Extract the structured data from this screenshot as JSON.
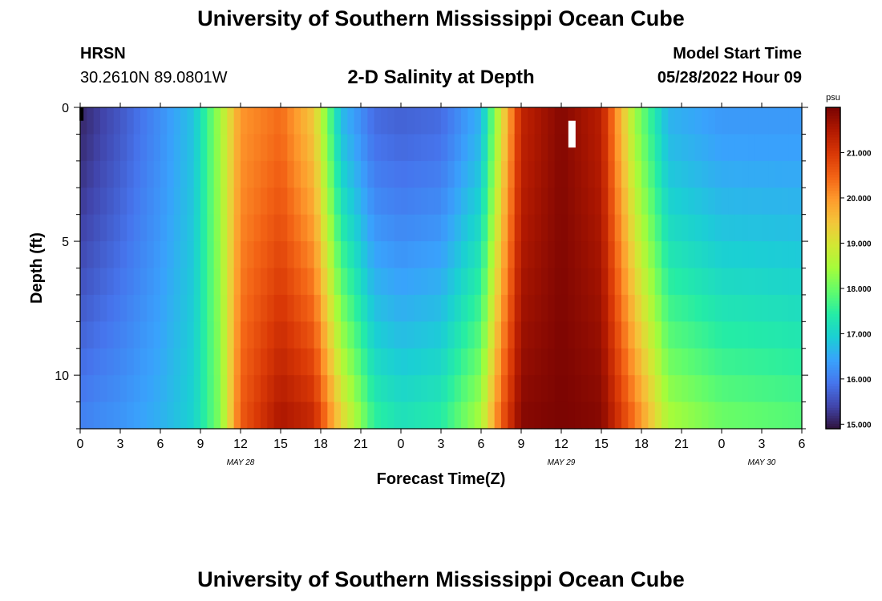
{
  "header": {
    "title": "University of Southern Mississippi Ocean Cube",
    "station": "HRSN",
    "coordinates": "30.2610N  89.0801W",
    "subtitle": "2-D Salinity at Depth",
    "model_start_label": "Model Start Time",
    "model_start_value": "05/28/2022 Hour 09"
  },
  "footer": {
    "title": "University of Southern Mississippi Ocean Cube"
  },
  "chart_data": {
    "type": "heatmap",
    "xlabel": "Forecast Time(Z)",
    "ylabel": "Depth (ft)",
    "x_tick_labels": [
      "0",
      "3",
      "6",
      "9",
      "12",
      "15",
      "18",
      "21",
      "0",
      "3",
      "6",
      "9",
      "12",
      "15",
      "18",
      "21",
      "0",
      "3",
      "6"
    ],
    "x_range_hours": [
      0,
      54
    ],
    "day_labels": [
      {
        "text": "MAY 28",
        "hour": 12
      },
      {
        "text": "MAY 29",
        "hour": 36
      },
      {
        "text": "MAY 30",
        "hour": 51
      }
    ],
    "y_tick_labels": [
      "0",
      "5",
      "10"
    ],
    "ylim_ft": [
      0,
      12
    ],
    "y_inverted": true,
    "depth_levels_ft": [
      0,
      1,
      2,
      3,
      4,
      5,
      6,
      7,
      8,
      9,
      10,
      11,
      12
    ],
    "colorbar": {
      "unit": "psu",
      "range": [
        14.9,
        22.0
      ],
      "tick_labels": [
        "15.000",
        "16.000",
        "17.000",
        "18.000",
        "19.000",
        "20.000",
        "21.000"
      ],
      "ticks": [
        15,
        16,
        17,
        18,
        19,
        20,
        21
      ],
      "colors": [
        "#30123b",
        "#4145ab",
        "#4675ed",
        "#39a2fc",
        "#1bcfd4",
        "#24eca6",
        "#61fc6c",
        "#a4fc3b",
        "#d1e834",
        "#f3c63a",
        "#fe9b2d",
        "#f36315",
        "#d93806",
        "#b11901",
        "#7a0402"
      ]
    },
    "salinity_keyframes": [
      {
        "hour": 0,
        "surface": 15.1,
        "bottom": 16.1
      },
      {
        "hour": 3,
        "surface": 15.6,
        "bottom": 16.3
      },
      {
        "hour": 6,
        "surface": 16.2,
        "bottom": 16.6
      },
      {
        "hour": 8.5,
        "surface": 16.8,
        "bottom": 17.0
      },
      {
        "hour": 10.5,
        "surface": 18.5,
        "bottom": 18.2
      },
      {
        "hour": 12,
        "surface": 20.0,
        "bottom": 20.6
      },
      {
        "hour": 15,
        "surface": 20.4,
        "bottom": 21.6
      },
      {
        "hour": 17.5,
        "surface": 19.4,
        "bottom": 21.3
      },
      {
        "hour": 19.5,
        "surface": 16.7,
        "bottom": 19.4
      },
      {
        "hour": 22,
        "surface": 15.8,
        "bottom": 17.6
      },
      {
        "hour": 24,
        "surface": 15.7,
        "bottom": 17.3
      },
      {
        "hour": 27,
        "surface": 15.8,
        "bottom": 17.5
      },
      {
        "hour": 30,
        "surface": 16.6,
        "bottom": 18.6
      },
      {
        "hour": 31.5,
        "surface": 19.0,
        "bottom": 20.6
      },
      {
        "hour": 33,
        "surface": 21.3,
        "bottom": 21.9
      },
      {
        "hour": 36,
        "surface": 21.9,
        "bottom": 22.0
      },
      {
        "hour": 39,
        "surface": 21.4,
        "bottom": 21.9
      },
      {
        "hour": 41.5,
        "surface": 18.4,
        "bottom": 20.4
      },
      {
        "hour": 44,
        "surface": 16.6,
        "bottom": 18.6
      },
      {
        "hour": 48,
        "surface": 16.3,
        "bottom": 18.1
      },
      {
        "hour": 54,
        "surface": 16.3,
        "bottom": 17.9
      }
    ],
    "highlight_boxes": [
      {
        "color": "#000000",
        "hour": 0.1,
        "depth_ft": [
          0,
          0.5
        ]
      },
      {
        "color": "#ffffff",
        "hour": 36.8,
        "depth_ft": [
          0.5,
          1.5
        ]
      }
    ]
  }
}
